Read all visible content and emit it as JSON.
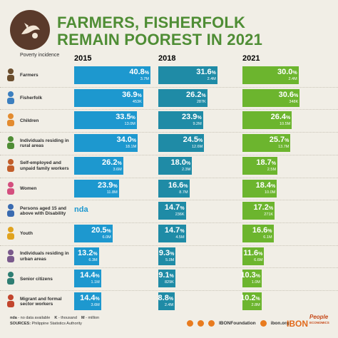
{
  "title_line1": "FARMERS, FISHERFOLK",
  "title_line2": "REMAIN POOREST IN 2021",
  "header_label": "Poverty incidence",
  "chart_data": {
    "type": "bar",
    "title": "FARMERS, FISHERFOLK REMAIN POOREST IN 2021",
    "years": [
      "2015",
      "2018",
      "2021"
    ],
    "year_colors": [
      "#1d98cf",
      "#1f8ba6",
      "#6cb52e"
    ],
    "categories": [
      "Farmers",
      "Fisherfolk",
      "Children",
      "Individuals residing in rural areas",
      "Self-employed and unpaid family workers",
      "Women",
      "Persons aged 15 and above with Disability",
      "Youth",
      "Individuals residing in urban areas",
      "Senior citizens",
      "Migrant and formal sector workers"
    ],
    "series": [
      {
        "name": "2015",
        "values": [
          40.8,
          36.9,
          33.5,
          34.0,
          26.2,
          23.9,
          null,
          20.5,
          13.2,
          14.4,
          14.4
        ],
        "value_labels": [
          "40.8",
          "36.9",
          "33.5",
          "34.0",
          "26.2",
          "23.9",
          "nda",
          "20.5",
          "13.2",
          "14.4",
          "14.4"
        ],
        "counts": [
          "3.7M",
          "453K",
          "13.0M",
          "18.1M",
          "3.6M",
          "11.8M",
          "",
          "6.0M",
          "6.3M",
          "1.1M",
          "3.6M"
        ]
      },
      {
        "name": "2018",
        "values": [
          31.6,
          26.2,
          23.9,
          24.5,
          18.0,
          16.6,
          14.7,
          14.7,
          9.3,
          9.1,
          8.8
        ],
        "value_labels": [
          "31.6",
          "26.2",
          "23.9",
          "24.5",
          "18.0",
          "16.6",
          "14.7",
          "14.7",
          "9.3",
          "9.1",
          "8.8"
        ],
        "counts": [
          "2.4M",
          "287K",
          "9.2M",
          "12.6M",
          "2.3M",
          "8.7M",
          "236K",
          "4.5M",
          "5.0M",
          "829K",
          "2.4M"
        ]
      },
      {
        "name": "2021",
        "values": [
          30.0,
          30.6,
          26.4,
          25.7,
          18.7,
          18.4,
          17.2,
          16.6,
          11.6,
          10.3,
          10.2
        ],
        "value_labels": [
          "30.0",
          "30.6",
          "26.4",
          "25.7",
          "18.7",
          "18.4",
          "17.2",
          "16.6",
          "11.6",
          "10.3",
          "10.2"
        ],
        "counts": [
          "2.4M",
          "348K",
          "10.5M",
          "13.7M",
          "2.5M",
          "10.0M",
          "271K",
          "6.1M",
          "6.6M",
          "1.0M",
          "2.8M"
        ]
      }
    ],
    "unit": "%",
    "xlim": [
      0,
      40.8
    ]
  },
  "footer": {
    "legend_nda": "nda",
    "legend_nda_desc": " - no data available",
    "legend_k": "K",
    "legend_k_desc": " - thousand",
    "legend_m": "M",
    "legend_m_desc": " - million",
    "sources_label": "SOURCES:",
    "sources_text": " Philippine Statistics Authority"
  },
  "social": {
    "handle": "IBONFoundation",
    "site": "ibon.org"
  },
  "brand": {
    "ibon": "IBON",
    "people": "People",
    "economics": "ECONOMICS"
  }
}
